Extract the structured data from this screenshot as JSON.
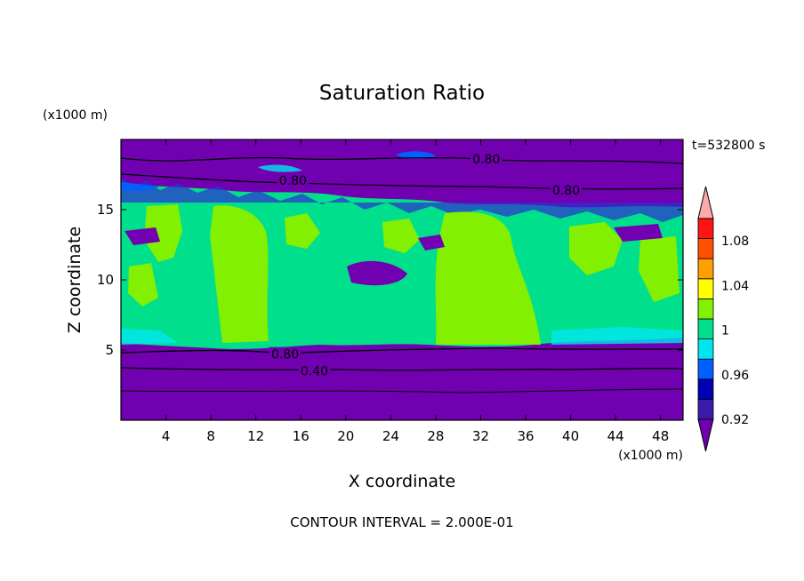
{
  "chart_data": {
    "type": "heatmap",
    "title": "Saturation Ratio",
    "xlabel": "X coordinate",
    "ylabel": "Z coordinate",
    "x_unit": "(x1000 m)",
    "y_unit": "(x1000 m)",
    "time_label": "t=532800 s",
    "footer": "CONTOUR INTERVAL = 2.000E-01",
    "xlim": [
      0,
      50
    ],
    "ylim": [
      0,
      20
    ],
    "x_ticks": [
      4,
      8,
      12,
      16,
      20,
      24,
      28,
      32,
      36,
      40,
      44,
      48
    ],
    "y_ticks": [
      5,
      10,
      15
    ],
    "contour_labels": [
      {
        "text": "0.80",
        "x": 32.5,
        "z": 18.6
      },
      {
        "text": "0.80",
        "x": 15.3,
        "z": 17.1
      },
      {
        "text": "0.80",
        "x": 39.6,
        "z": 16.4
      },
      {
        "text": "0.80",
        "x": 14.6,
        "z": 4.7
      },
      {
        "text": "0.40",
        "x": 17.2,
        "z": 3.5
      }
    ],
    "colorbar": {
      "levels": [
        0.92,
        0.94,
        0.96,
        0.98,
        1.0,
        1.02,
        1.04,
        1.06,
        1.08,
        1.1
      ],
      "labels": [
        "0.92",
        "0.96",
        "1",
        "1.04",
        "1.08"
      ],
      "colors": [
        "#7000b0",
        "#3a1aa8",
        "#0000b4",
        "#0060ff",
        "#00e6f0",
        "#00e08c",
        "#82f000",
        "#ffff00",
        "#ffa000",
        "#ff5000",
        "#ff1414",
        "#ffaaaa"
      ]
    }
  }
}
